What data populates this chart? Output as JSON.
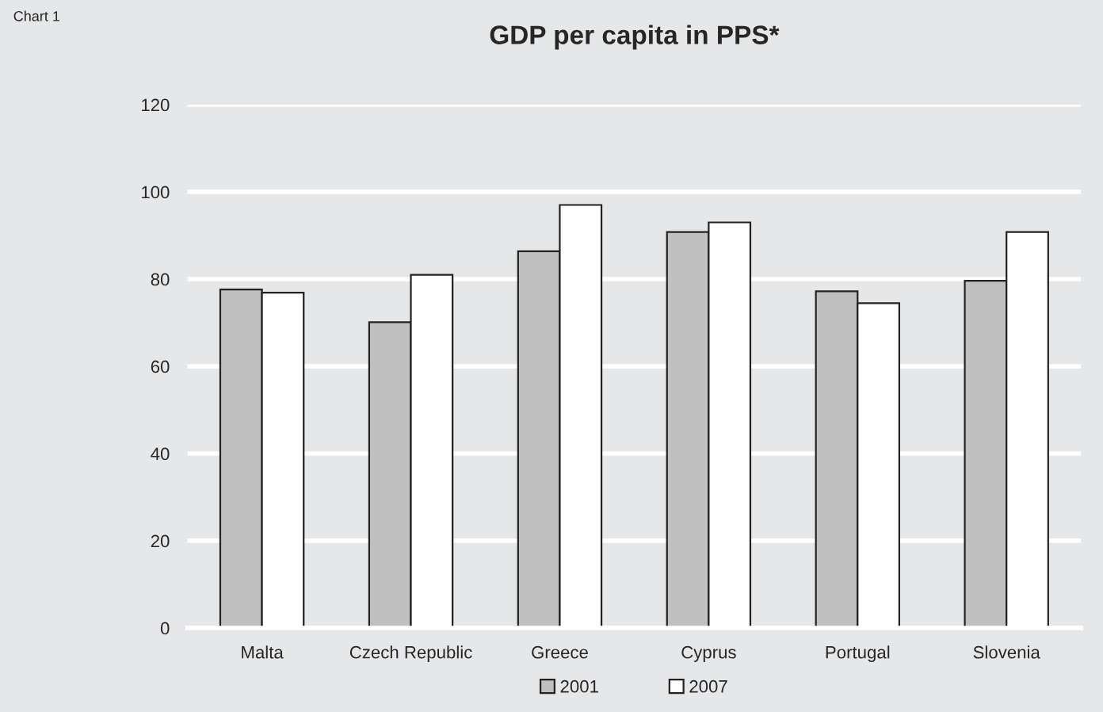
{
  "chart_data": {
    "type": "bar",
    "title": "GDP per capita in PPS*",
    "annotations": [
      "Chart 1"
    ],
    "categories": [
      "Malta",
      "Czech Republic",
      "Greece",
      "Cyprus",
      "Portugal",
      "Slovenia"
    ],
    "series": [
      {
        "name": "2001",
        "color": "#c0c0c0",
        "values": [
          77.6,
          70.1,
          86.4,
          90.8,
          77.2,
          79.6
        ]
      },
      {
        "name": "2007",
        "color": "#ffffff",
        "values": [
          76.9,
          81.0,
          97.0,
          93.0,
          74.5,
          90.8
        ]
      }
    ],
    "ylim": [
      0,
      120
    ],
    "yticks": [
      0,
      20,
      40,
      60,
      80,
      100,
      120
    ],
    "grid": "y",
    "legend": "bottom"
  }
}
